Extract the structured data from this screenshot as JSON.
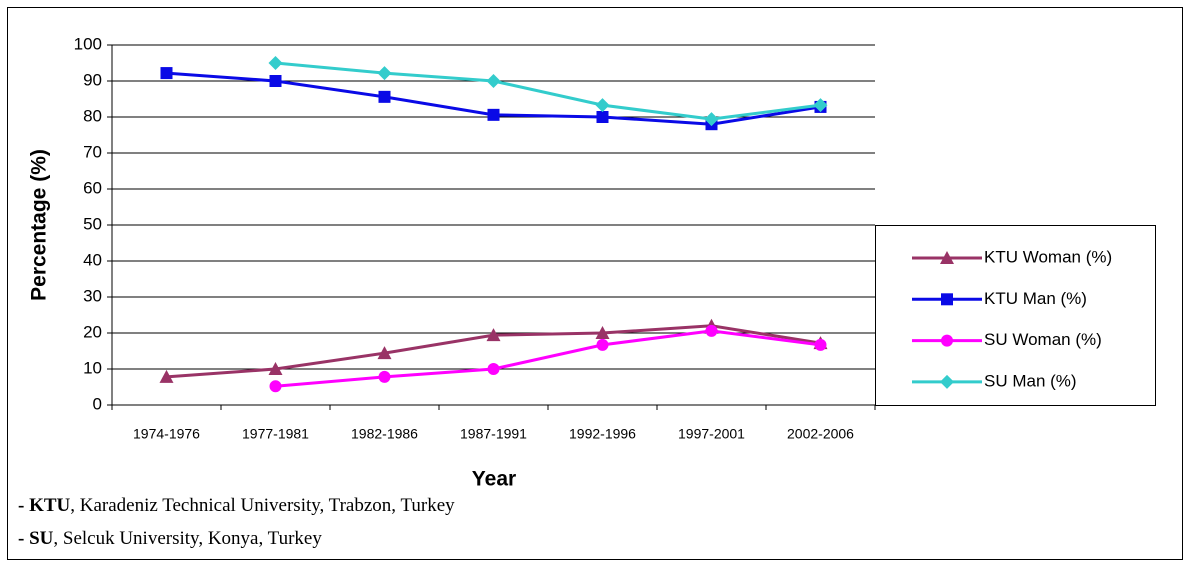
{
  "chart_data": {
    "type": "line",
    "y_label": "Percentage (%)",
    "x_label": "Year",
    "categories": [
      "1974-1976",
      "1977-1981",
      "1982-1986",
      "1987-1991",
      "1992-1996",
      "1997-2001",
      "2002-2006"
    ],
    "ylim": [
      0,
      100
    ],
    "yticks": [
      0,
      10,
      20,
      30,
      40,
      50,
      60,
      70,
      80,
      90,
      100
    ],
    "grid": true,
    "legend": "right",
    "series": [
      {
        "name": "KTU Woman (%)",
        "color": "#993366",
        "marker": "triangle",
        "values": [
          7.8,
          10,
          14.4,
          19.4,
          20,
          22,
          17.2
        ]
      },
      {
        "name": "KTU Man (%)",
        "color": "#0a0ae6",
        "marker": "square",
        "values": [
          92.2,
          90,
          85.6,
          80.6,
          80,
          78,
          82.8
        ]
      },
      {
        "name": "SU Woman (%)",
        "color": "#ff00ff",
        "marker": "circle",
        "values": [
          null,
          5.2,
          7.8,
          10,
          16.7,
          20.6,
          16.7
        ]
      },
      {
        "name": "SU Man (%)",
        "color": "#33cccc",
        "marker": "diamond",
        "values": [
          null,
          95,
          92.2,
          90,
          83.3,
          79.4,
          83.3
        ]
      }
    ]
  },
  "notes": [
    {
      "lead": "- KTU",
      "rest": ", Karadeniz Technical University, Trabzon, Turkey"
    },
    {
      "lead": "- SU",
      "rest": ", Selcuk University, Konya, Turkey"
    }
  ]
}
